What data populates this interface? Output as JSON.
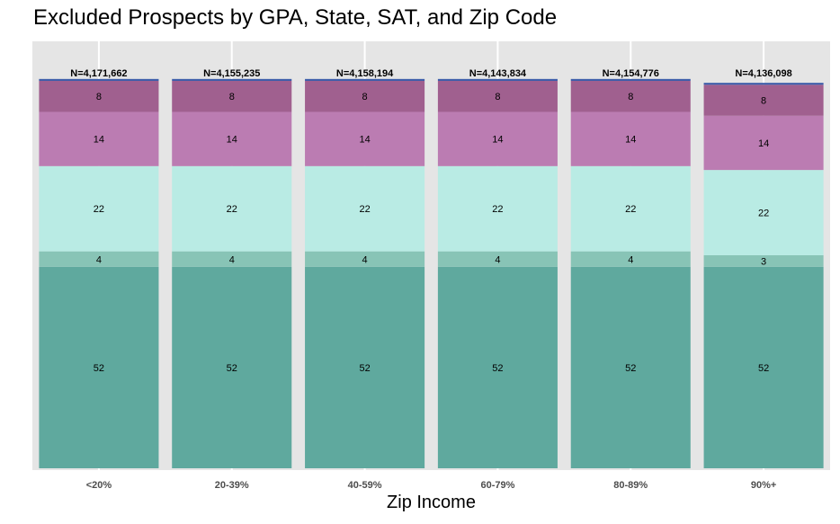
{
  "chart_data": {
    "type": "bar",
    "stacked": true,
    "normalized_to_100": true,
    "title": "Excluded Prospects by GPA, State, SAT, and Zip Code",
    "xlabel": "Zip Income",
    "ylabel": "",
    "ylim": [
      0,
      100
    ],
    "grid": true,
    "legend": "none",
    "categories": [
      "<20%",
      "20-39%",
      "40-59%",
      "60-79%",
      "80-89%",
      "90%+"
    ],
    "totals": [
      "N=4,171,662",
      "N=4,155,235",
      "N=4,158,194",
      "N=4,143,834",
      "N=4,154,776",
      "N=4,136,098"
    ],
    "series": [
      {
        "color": "#5fa99e",
        "values": [
          52,
          52,
          52,
          52,
          52,
          52
        ]
      },
      {
        "color": "#88c4b6",
        "values": [
          4,
          4,
          4,
          4,
          4,
          3
        ]
      },
      {
        "color": "#b9ebe4",
        "values": [
          22,
          22,
          22,
          22,
          22,
          22
        ]
      },
      {
        "color": "#bb7cb2",
        "values": [
          14,
          14,
          14,
          14,
          14,
          14
        ]
      },
      {
        "color": "#a0608f",
        "values": [
          8,
          8,
          8,
          8,
          8,
          8
        ]
      },
      {
        "color": "#3e5eaa",
        "values": [
          0.5,
          0.5,
          0.5,
          0.5,
          0.5,
          0.5
        ],
        "labels_shown": false
      }
    ],
    "panel_background": "#e5e5e5",
    "gridline_color": "#ffffff"
  }
}
